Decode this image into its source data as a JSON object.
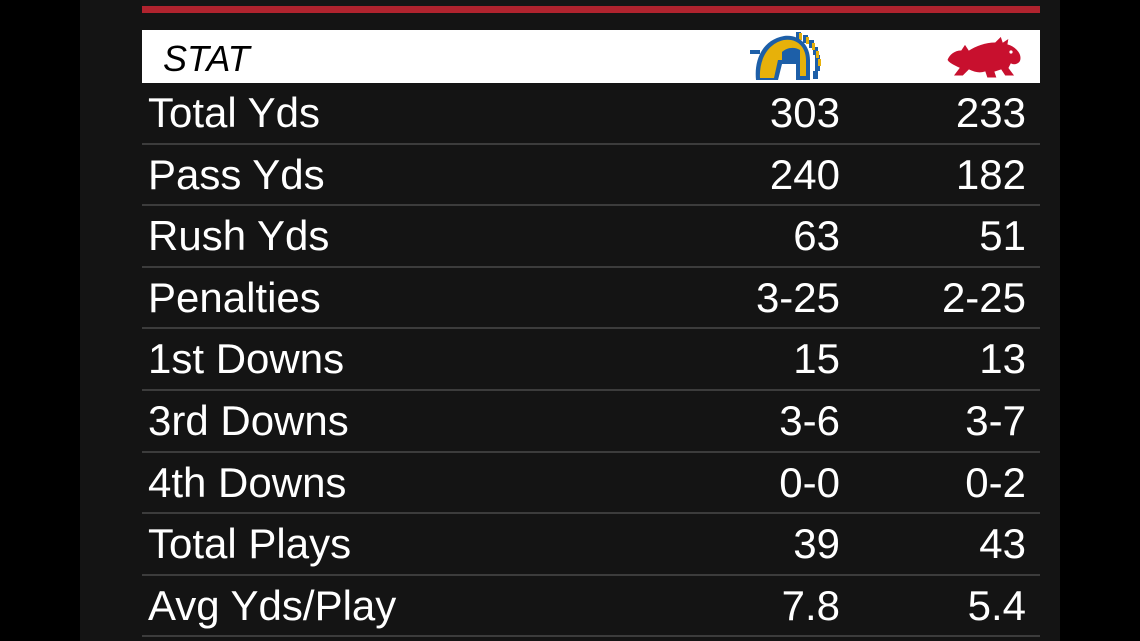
{
  "header": {
    "stat_label": "STAT",
    "team1_logo": "sjsu-spartans-logo",
    "team2_logo": "arkansas-razorbacks-logo"
  },
  "colors": {
    "accent": "#b0232e",
    "header_bg": "#ffffff",
    "row_bg": "#141414",
    "divider": "#3c3c3c",
    "sjsu_gold": "#e7b10a",
    "sjsu_blue": "#1d5fa8",
    "hog_red": "#c8102e"
  },
  "rows": [
    {
      "label": "Total Yds",
      "team1": "303",
      "team2": "233"
    },
    {
      "label": "Pass Yds",
      "team1": "240",
      "team2": "182"
    },
    {
      "label": "Rush Yds",
      "team1": "63",
      "team2": "51"
    },
    {
      "label": "Penalties",
      "team1": "3-25",
      "team2": "2-25"
    },
    {
      "label": "1st Downs",
      "team1": "15",
      "team2": "13"
    },
    {
      "label": "3rd Downs",
      "team1": "3-6",
      "team2": "3-7"
    },
    {
      "label": "4th Downs",
      "team1": "0-0",
      "team2": "0-2"
    },
    {
      "label": "Total Plays",
      "team1": "39",
      "team2": "43"
    },
    {
      "label": "Avg Yds/Play",
      "team1": "7.8",
      "team2": "5.4"
    }
  ]
}
